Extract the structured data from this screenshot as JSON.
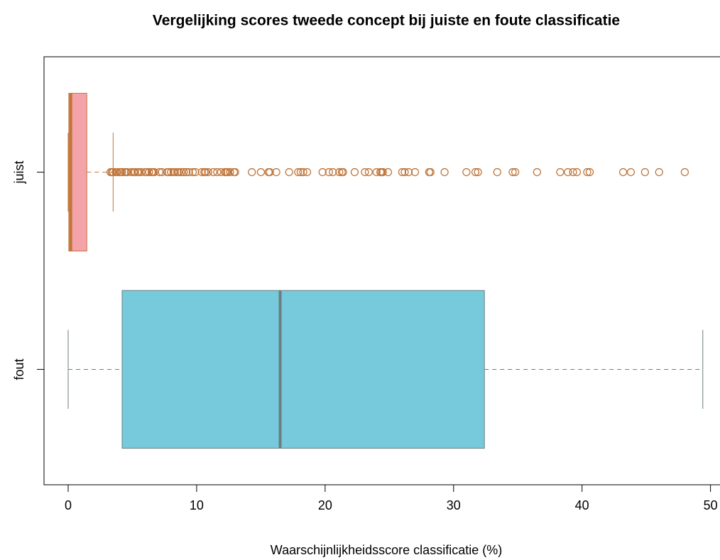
{
  "chart_data": {
    "type": "boxplot",
    "title": "Vergelijking scores tweede concept bij juiste en foute classificatie",
    "xlabel": "Waarschijnlijkheidsscore classificatie (%)",
    "categories": [
      "juist",
      "fout"
    ],
    "boxes": [
      {
        "min": 0,
        "q1": 0.05,
        "median": 0.2,
        "q3": 1.45,
        "max": 3.5,
        "fill": "#f4a3a8",
        "stroke": "#c0753a",
        "outliers": [
          3.3,
          3.4,
          3.5,
          3.7,
          3.8,
          4.0,
          4.1,
          4.2,
          4.4,
          4.5,
          4.6,
          4.9,
          5.1,
          5.2,
          5.4,
          5.5,
          5.7,
          6.0,
          6.1,
          6.3,
          6.5,
          6.6,
          6.7,
          7.1,
          7.3,
          7.7,
          7.8,
          8.0,
          8.2,
          8.3,
          8.5,
          8.6,
          8.8,
          9.0,
          9.2,
          9.4,
          9.7,
          9.9,
          10.4,
          10.6,
          10.7,
          10.9,
          11.3,
          11.6,
          11.9,
          12.2,
          12.3,
          12.4,
          12.6,
          12.9,
          13.0,
          14.3,
          15.0,
          15.6,
          15.7,
          16.2,
          17.2,
          17.9,
          18.1,
          18.3,
          18.6,
          19.8,
          20.3,
          20.6,
          21.1,
          21.3,
          21.4,
          22.3,
          23.1,
          23.4,
          24.0,
          24.3,
          24.4,
          24.5,
          24.9,
          26.0,
          26.2,
          26.5,
          27.0,
          28.1,
          28.2,
          29.3,
          31.0,
          31.7,
          31.9,
          33.4,
          34.6,
          34.8,
          36.5,
          38.3,
          38.9,
          39.3,
          39.6,
          40.4,
          40.6,
          43.2,
          43.8,
          44.9,
          46.0,
          48.0
        ]
      },
      {
        "min": 0,
        "q1": 4.2,
        "median": 16.5,
        "q3": 32.4,
        "max": 49.4,
        "fill": "#76cadb",
        "stroke": "#6b7f80",
        "outliers": []
      }
    ],
    "xlim": [
      -1.88,
      51.9
    ],
    "xticks": [
      0,
      10,
      20,
      30,
      40,
      50
    ]
  }
}
